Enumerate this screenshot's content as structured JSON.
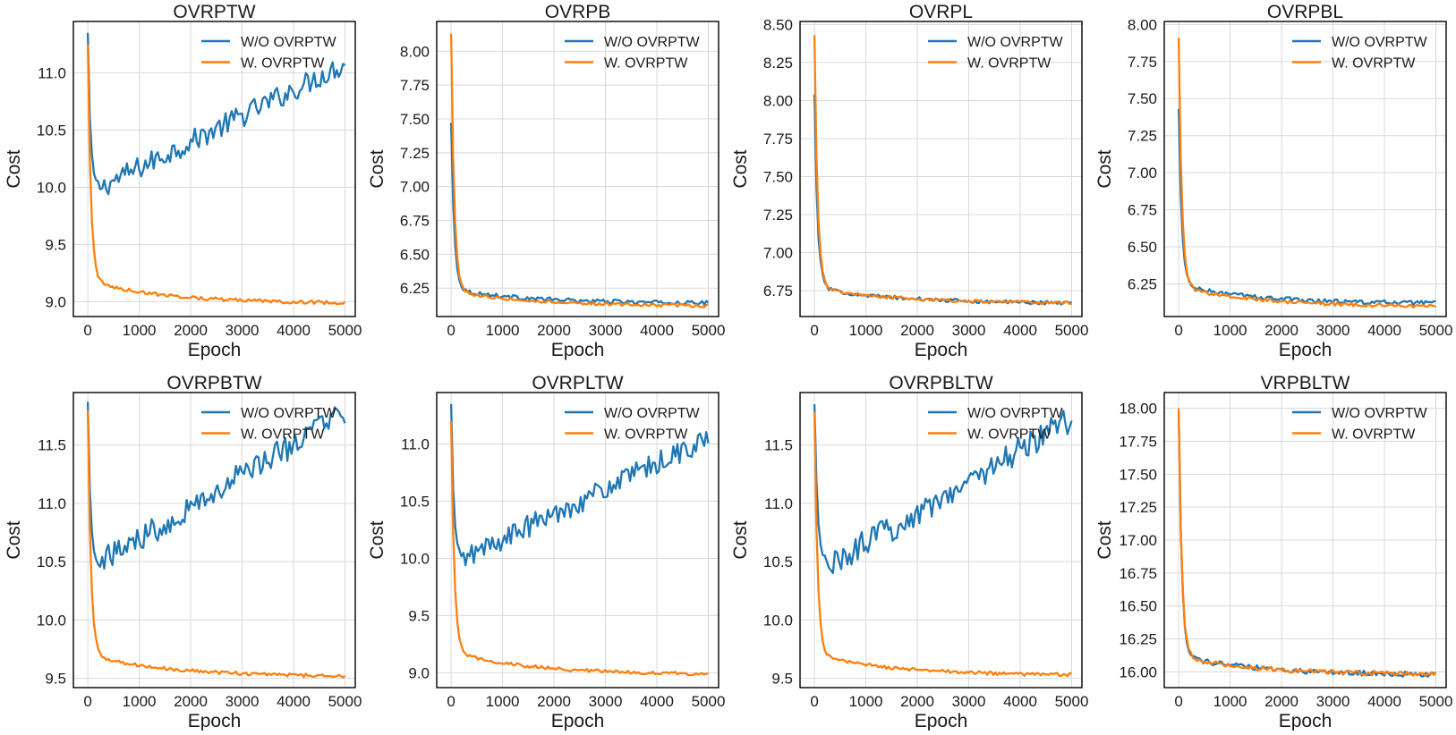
{
  "figure": {
    "background": "#ffffff"
  },
  "colors": {
    "wo": "#1f77b4",
    "w": "#ff7f0e"
  },
  "chart_data": [
    {
      "type": "line",
      "title": "OVRPTW",
      "xlabel": "Epoch",
      "ylabel": "Cost",
      "xlim": [
        -280,
        5200
      ],
      "ylim": [
        8.87,
        11.45
      ],
      "xticks": [
        0,
        1000,
        2000,
        3000,
        4000,
        5000
      ],
      "yticks": [
        9.0,
        9.5,
        10.0,
        10.5,
        11.0
      ],
      "ytick_labels": [
        "9.0",
        "9.5",
        "10.0",
        "10.5",
        "11.0"
      ],
      "legend": "top-right",
      "series": [
        {
          "name": "W/O OVRPTW",
          "color": "#1f77b4",
          "start": 11.35,
          "min": 10.0,
          "min_epoch": 250,
          "end": 11.08,
          "noise": 0.1
        },
        {
          "name": "W. OVRPTW",
          "color": "#ff7f0e",
          "start": 11.25,
          "plateau": 9.18,
          "end": 8.99,
          "noise": 0.015
        }
      ]
    },
    {
      "type": "line",
      "title": "OVRPB",
      "xlabel": "Epoch",
      "ylabel": "Cost",
      "xlim": [
        -280,
        5200
      ],
      "ylim": [
        6.04,
        8.22
      ],
      "xticks": [
        0,
        1000,
        2000,
        3000,
        4000,
        5000
      ],
      "yticks": [
        6.25,
        6.5,
        6.75,
        7.0,
        7.25,
        7.5,
        7.75,
        8.0
      ],
      "ytick_labels": [
        "6.25",
        "6.50",
        "6.75",
        "7.00",
        "7.25",
        "7.50",
        "7.75",
        "8.00"
      ],
      "legend": "top-right",
      "series": [
        {
          "name": "W/O OVRPTW",
          "color": "#1f77b4",
          "start": 7.47,
          "plateau": 6.24,
          "end": 6.14,
          "noise": 0.015
        },
        {
          "name": "W. OVRPTW",
          "color": "#ff7f0e",
          "start": 8.13,
          "plateau": 6.23,
          "end": 6.12,
          "noise": 0.012
        }
      ]
    },
    {
      "type": "line",
      "title": "OVRPL",
      "xlabel": "Epoch",
      "ylabel": "Cost",
      "xlim": [
        -280,
        5200
      ],
      "ylim": [
        6.58,
        8.52
      ],
      "xticks": [
        0,
        1000,
        2000,
        3000,
        4000,
        5000
      ],
      "yticks": [
        6.75,
        7.0,
        7.25,
        7.5,
        7.75,
        8.0,
        8.25,
        8.5
      ],
      "ytick_labels": [
        "6.75",
        "7.00",
        "7.25",
        "7.50",
        "7.75",
        "8.00",
        "8.25",
        "8.50"
      ],
      "legend": "top-right",
      "series": [
        {
          "name": "W/O OVRPTW",
          "color": "#1f77b4",
          "start": 8.04,
          "plateau": 6.77,
          "end": 6.67,
          "noise": 0.012
        },
        {
          "name": "W. OVRPTW",
          "color": "#ff7f0e",
          "start": 8.43,
          "plateau": 6.77,
          "end": 6.67,
          "noise": 0.01
        }
      ]
    },
    {
      "type": "line",
      "title": "OVRPBL",
      "xlabel": "Epoch",
      "ylabel": "Cost",
      "xlim": [
        -280,
        5200
      ],
      "ylim": [
        6.03,
        8.02
      ],
      "xticks": [
        0,
        1000,
        2000,
        3000,
        4000,
        5000
      ],
      "yticks": [
        6.25,
        6.5,
        6.75,
        7.0,
        7.25,
        7.5,
        7.75,
        8.0
      ],
      "ytick_labels": [
        "6.25",
        "6.50",
        "6.75",
        "7.00",
        "7.25",
        "7.50",
        "7.75",
        "8.00"
      ],
      "legend": "top-right",
      "series": [
        {
          "name": "W/O OVRPTW",
          "color": "#1f77b4",
          "start": 7.43,
          "plateau": 6.24,
          "end": 6.12,
          "noise": 0.015
        },
        {
          "name": "W. OVRPTW",
          "color": "#ff7f0e",
          "start": 7.91,
          "plateau": 6.23,
          "end": 6.1,
          "noise": 0.012
        }
      ]
    },
    {
      "type": "line",
      "title": "OVRPBTW",
      "xlabel": "Epoch",
      "ylabel": "Cost",
      "xlim": [
        -280,
        5200
      ],
      "ylim": [
        9.42,
        11.95
      ],
      "xticks": [
        0,
        1000,
        2000,
        3000,
        4000,
        5000
      ],
      "yticks": [
        9.5,
        10.0,
        10.5,
        11.0,
        11.5
      ],
      "ytick_labels": [
        "9.5",
        "10.0",
        "10.5",
        "11.0",
        "11.5"
      ],
      "legend": "top-right",
      "series": [
        {
          "name": "W/O OVRPTW",
          "color": "#1f77b4",
          "start": 11.87,
          "min": 10.5,
          "min_epoch": 250,
          "end": 11.78,
          "noise": 0.12
        },
        {
          "name": "W. OVRPTW",
          "color": "#ff7f0e",
          "start": 11.8,
          "plateau": 9.7,
          "end": 9.52,
          "noise": 0.015
        }
      ]
    },
    {
      "type": "line",
      "title": "OVRPLTW",
      "xlabel": "Epoch",
      "ylabel": "Cost",
      "xlim": [
        -280,
        5200
      ],
      "ylim": [
        8.87,
        11.45
      ],
      "xticks": [
        0,
        1000,
        2000,
        3000,
        4000,
        5000
      ],
      "yticks": [
        9.0,
        9.5,
        10.0,
        10.5,
        11.0
      ],
      "ytick_labels": [
        "9.0",
        "9.5",
        "10.0",
        "10.5",
        "11.0"
      ],
      "legend": "top-right",
      "series": [
        {
          "name": "W/O OVRPTW",
          "color": "#1f77b4",
          "start": 11.35,
          "min": 10.0,
          "min_epoch": 250,
          "end": 11.05,
          "noise": 0.1
        },
        {
          "name": "W. OVRPTW",
          "color": "#ff7f0e",
          "start": 11.2,
          "plateau": 9.18,
          "end": 8.99,
          "noise": 0.015
        }
      ]
    },
    {
      "type": "line",
      "title": "OVRPBLTW",
      "xlabel": "Epoch",
      "ylabel": "Cost",
      "xlim": [
        -280,
        5200
      ],
      "ylim": [
        9.42,
        11.95
      ],
      "xticks": [
        0,
        1000,
        2000,
        3000,
        4000,
        5000
      ],
      "yticks": [
        9.5,
        10.0,
        10.5,
        11.0,
        11.5
      ],
      "ytick_labels": [
        "9.5",
        "10.0",
        "10.5",
        "11.0",
        "11.5"
      ],
      "legend": "top-right",
      "series": [
        {
          "name": "W/O OVRPTW",
          "color": "#1f77b4",
          "start": 11.85,
          "min": 10.47,
          "min_epoch": 300,
          "end": 11.72,
          "noise": 0.12
        },
        {
          "name": "W. OVRPTW",
          "color": "#ff7f0e",
          "start": 11.78,
          "plateau": 9.7,
          "end": 9.53,
          "noise": 0.015
        }
      ]
    },
    {
      "type": "line",
      "title": "VRPBLTW",
      "xlabel": "Epoch",
      "ylabel": "Cost",
      "xlim": [
        -280,
        5200
      ],
      "ylim": [
        15.88,
        18.12
      ],
      "xticks": [
        0,
        1000,
        2000,
        3000,
        4000,
        5000
      ],
      "yticks": [
        16.0,
        16.25,
        16.5,
        16.75,
        17.0,
        17.25,
        17.5,
        17.75,
        18.0
      ],
      "ytick_labels": [
        "16.00",
        "16.25",
        "16.50",
        "16.75",
        "17.00",
        "17.25",
        "17.50",
        "17.75",
        "18.00"
      ],
      "legend": "top-right",
      "series": [
        {
          "name": "W/O OVRPTW",
          "color": "#1f77b4",
          "start": 17.98,
          "plateau": 16.12,
          "end": 15.98,
          "noise": 0.02
        },
        {
          "name": "W. OVRPTW",
          "color": "#ff7f0e",
          "start": 18.0,
          "plateau": 16.12,
          "end": 15.98,
          "noise": 0.018
        }
      ]
    }
  ]
}
